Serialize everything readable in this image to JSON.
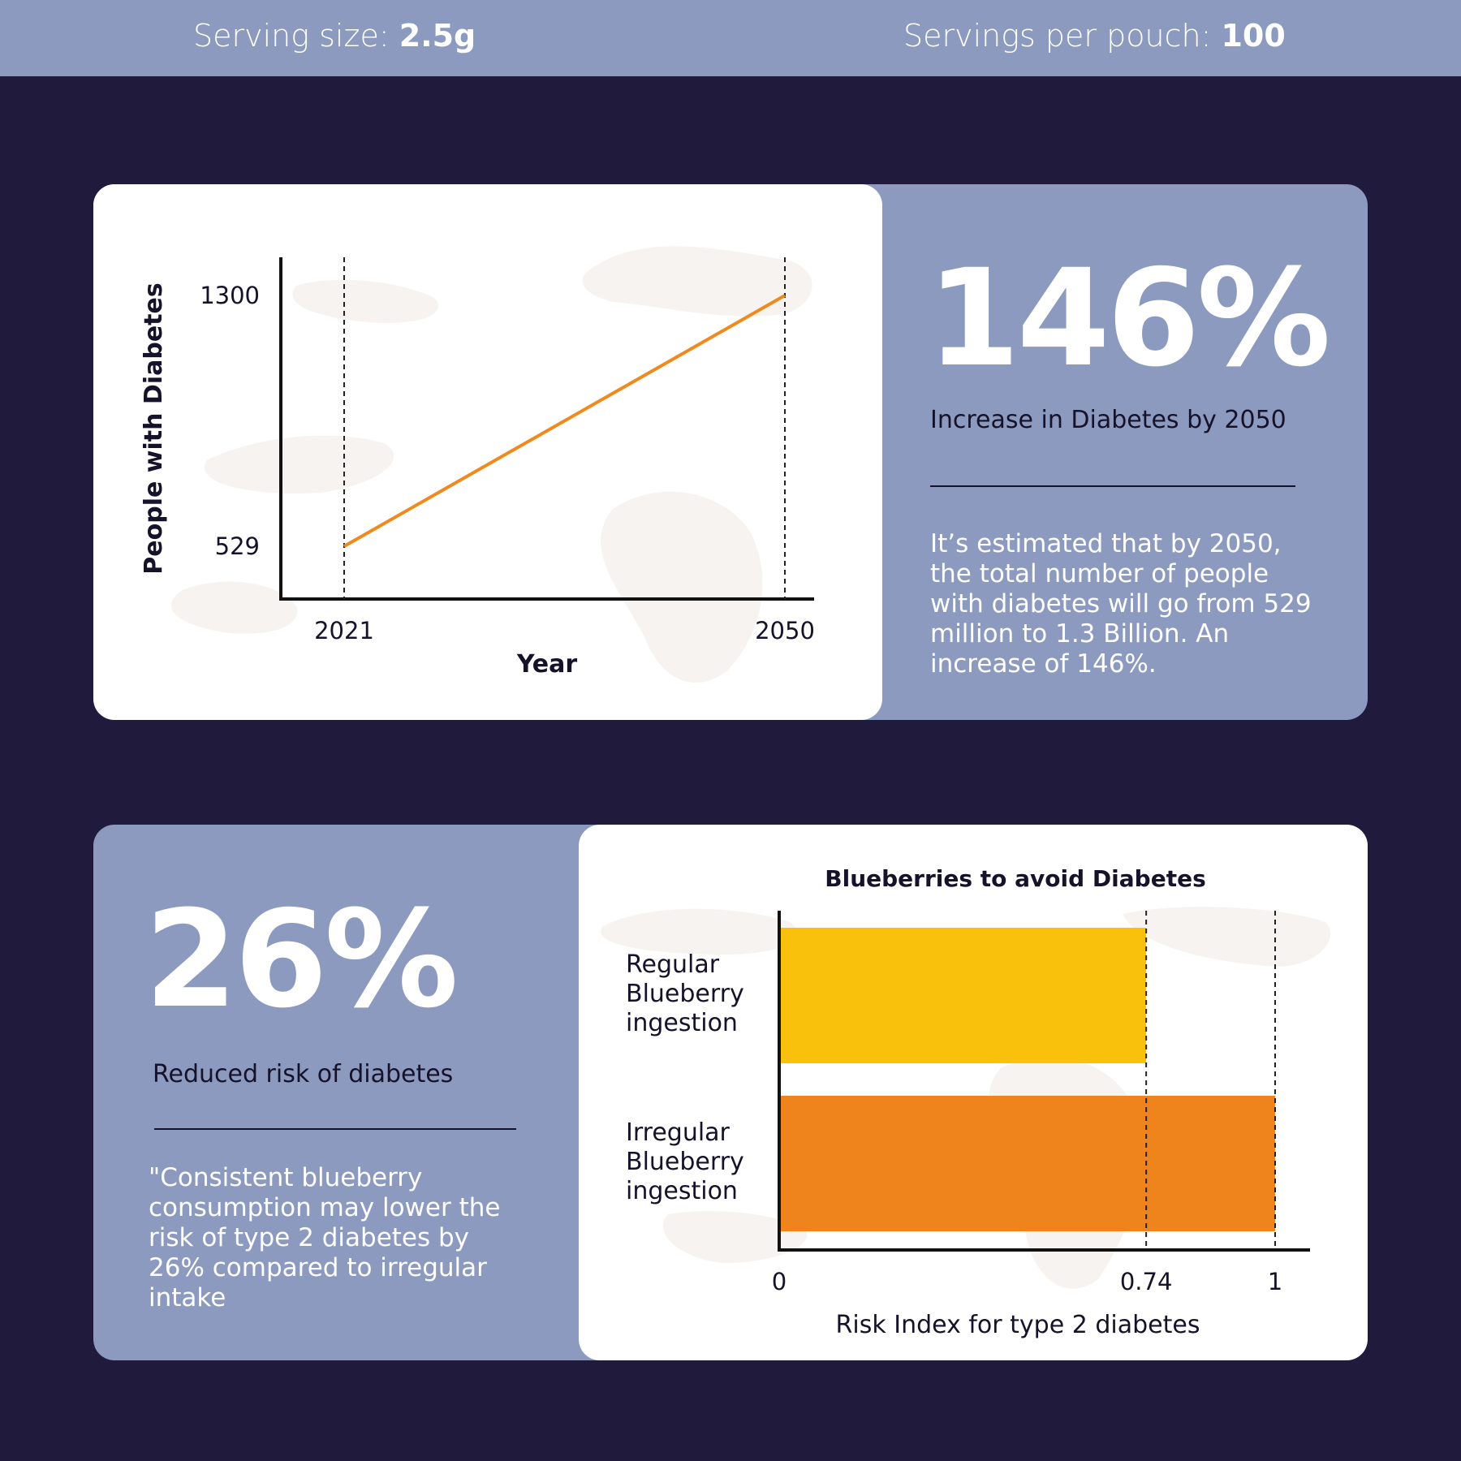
{
  "topbar": {
    "serving_size_label": "Serving size:",
    "serving_size_value": "2.5g",
    "servings_per_label": "Servings per pouch:",
    "servings_per_value": "100"
  },
  "stat1": {
    "value": "146%",
    "label": "Increase in Diabetes by 2050",
    "description": "It’s estimated that by 2050, the total number of people with diabetes will go from 529 million to 1.3 Billion. An increase of 146%."
  },
  "stat2": {
    "value": "26%",
    "label": "Reduced risk of diabetes",
    "description": "\"Consistent blueberry consumption may lower the risk of type 2 diabetes by 26% compared to irregular intake"
  },
  "colors": {
    "background": "#201a3c",
    "panel": "#8c9abf",
    "line": "#ef8a1f",
    "bar_regular": "#f9c10b",
    "bar_irregular": "#ef841c"
  },
  "chart_data": [
    {
      "type": "line",
      "title": "",
      "xlabel": "Year",
      "ylabel": "People with Diabetes",
      "x": [
        2021,
        2050
      ],
      "x_ticks": [
        "2021",
        "2050"
      ],
      "y_ticks": [
        "529",
        "1300"
      ],
      "series": [
        {
          "values": [
            529,
            1300
          ]
        }
      ],
      "ylim": [
        529,
        1300
      ],
      "grid": false
    },
    {
      "type": "bar",
      "orientation": "horizontal",
      "title": "Blueberries to avoid Diabetes",
      "xlabel": "Risk Index for type 2 diabetes",
      "ylabel": "",
      "categories": [
        "Regular Blueberry ingestion",
        "Irregular Blueberry ingestion"
      ],
      "category_lines": [
        [
          "Regular",
          "Blueberry",
          "ingestion"
        ],
        [
          "Irregular",
          "Blueberry",
          "ingestion"
        ]
      ],
      "values": [
        0.74,
        1
      ],
      "x_ticks": [
        "0",
        "0.74",
        "1"
      ],
      "xlim": [
        0,
        1
      ],
      "grid": false
    }
  ]
}
